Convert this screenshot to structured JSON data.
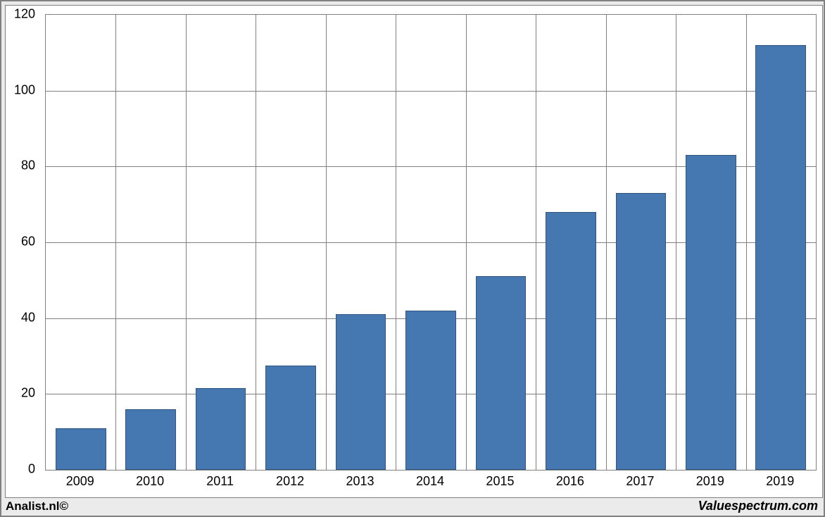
{
  "chart": {
    "type": "bar",
    "categories": [
      "2009",
      "2010",
      "2011",
      "2012",
      "2013",
      "2014",
      "2015",
      "2016",
      "2017",
      "2019",
      "2019"
    ],
    "values": [
      11,
      16,
      21.5,
      27.5,
      41,
      42,
      51,
      68,
      73,
      83,
      112
    ],
    "bar_color": "#4577b0",
    "bar_border_color": "#31557f",
    "ylim": [
      0,
      120
    ],
    "ytick_step": 20,
    "yticks": [
      0,
      20,
      40,
      60,
      80,
      100,
      120
    ],
    "grid_color": "#808080",
    "background_color": "#ffffff",
    "outer_background": "#ebebeb",
    "axis_fontsize": 18,
    "bar_width_ratio": 0.72
  },
  "footer": {
    "left": "Analist.nl©",
    "right": "Valuespectrum.com"
  }
}
